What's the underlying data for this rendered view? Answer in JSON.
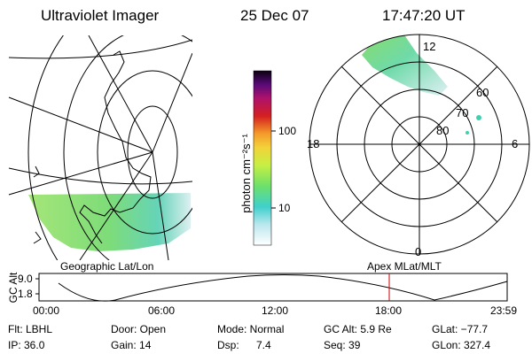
{
  "header": {
    "instrument": "Ultraviolet Imager",
    "date": "25 Dec 07",
    "time": "17:47:20 UT"
  },
  "map_labels": {
    "geographic": "Geographic Lat/Lon",
    "apex": "Apex MLat/MLT"
  },
  "colorbar": {
    "unit_label": "photon cm⁻²s⁻¹",
    "ticks": [
      "100",
      "10"
    ]
  },
  "polar_plot": {
    "mlt_labels": {
      "top": "12",
      "left": "18",
      "right": "6",
      "bottom": "0"
    },
    "lat_labels": [
      "60",
      "70",
      "80"
    ]
  },
  "altitude_plot": {
    "axis_label": "GC Alt",
    "y_ticks": [
      "9.0",
      "1.8"
    ],
    "x_ticks": [
      "00:00",
      "06:00",
      "12:00",
      "18:00",
      "23:59"
    ]
  },
  "info": {
    "row1": {
      "filter": "Flt: LBHL",
      "door": "Door: Open",
      "mode": "Mode: Normal",
      "gc_alt": "GC Alt: 5.9 Re",
      "glat": "GLat: −77.7"
    },
    "row2": {
      "ip": "IP: 36.0",
      "gain": "Gain: 14",
      "dsp_label": "Dsp:",
      "dsp_value": "7.4",
      "seq": "Seq: 39",
      "glon": "GLon: 327.4"
    }
  },
  "colors": {
    "marker": "#cc0000",
    "aurora_green": "#7ed957",
    "aurora_cyan": "#40d0c8"
  }
}
